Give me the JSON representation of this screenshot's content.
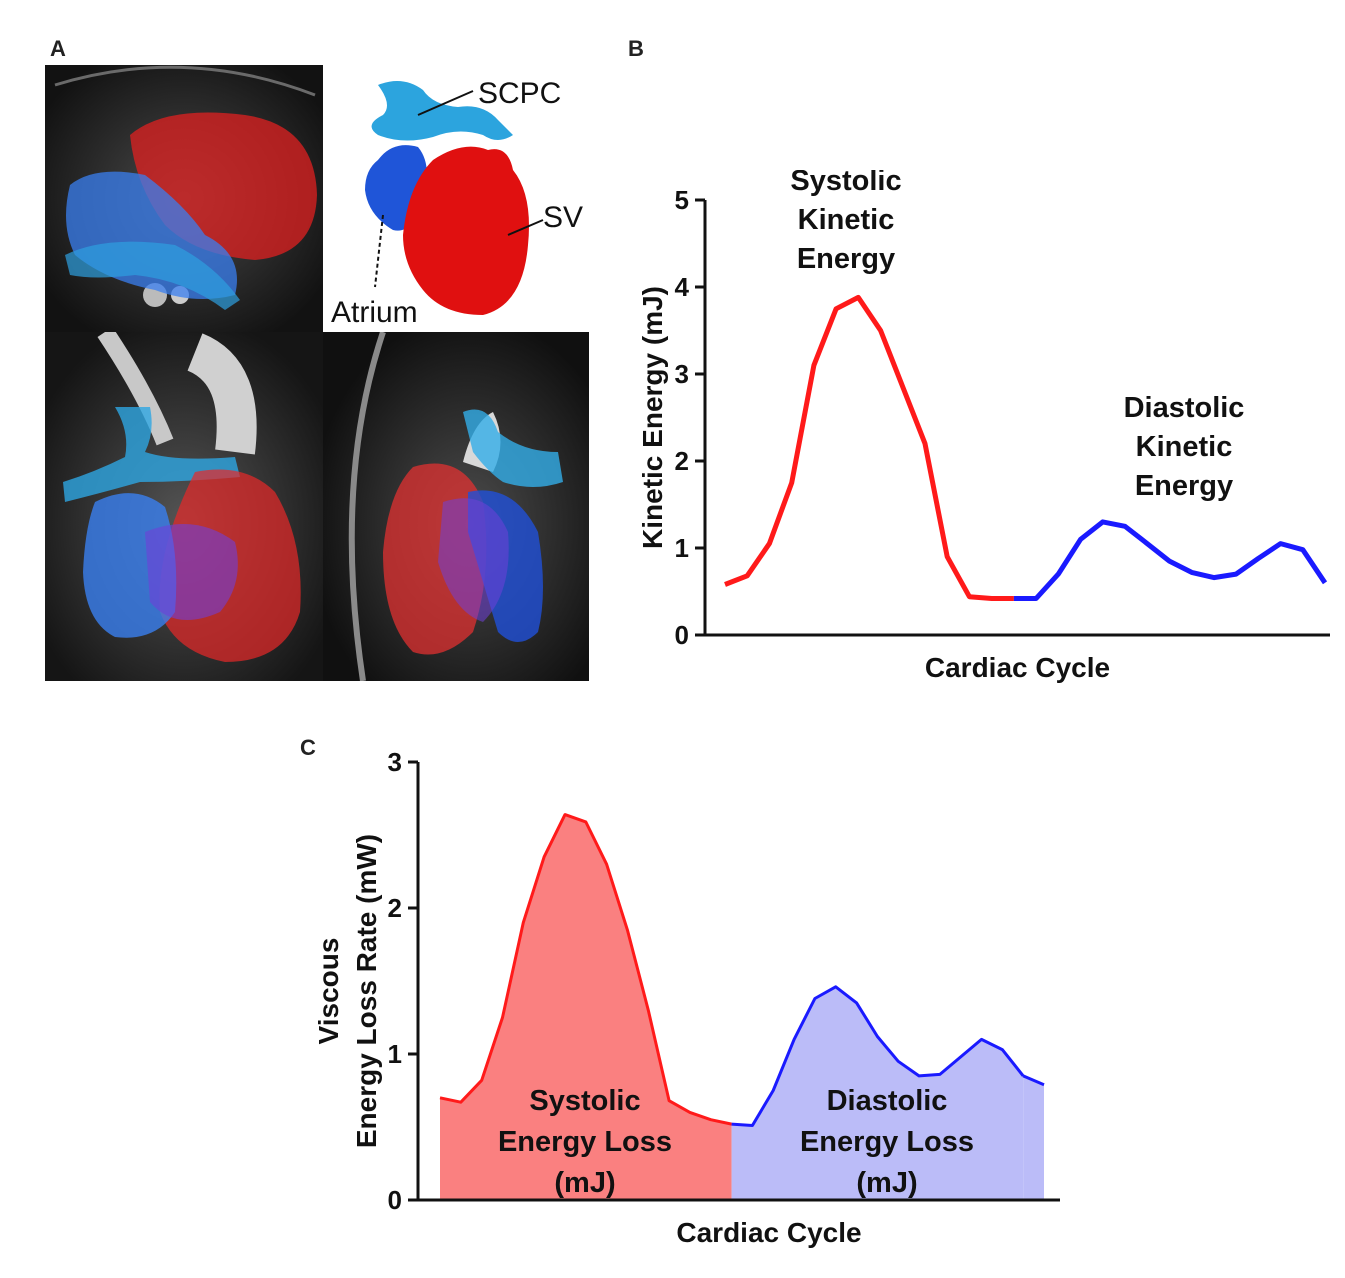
{
  "panels": {
    "a": "A",
    "b": "B",
    "c": "C"
  },
  "anatomy": {
    "labels": {
      "scpc": "SCPC",
      "sv": "SV",
      "atrium": "Atrium"
    },
    "colors": {
      "sv": "#e01010",
      "atrium": "#1f55d8",
      "scpc": "#2d9fdd"
    }
  },
  "chart_data": [
    {
      "type": "line",
      "panel": "B",
      "title": "",
      "xlabel": "Cardiac Cycle",
      "ylabel": "Kinetic Energy (mJ)",
      "ylim": [
        0,
        5
      ],
      "yticks": [
        "0",
        "1",
        "2",
        "3",
        "4",
        "5"
      ],
      "x": [
        0,
        1,
        2,
        3,
        4,
        5,
        6,
        7,
        8,
        9,
        10,
        11,
        12,
        13,
        14,
        15,
        16,
        17,
        18,
        19,
        20,
        21,
        22,
        23,
        24,
        25,
        26,
        27
      ],
      "series": [
        {
          "name": "Systolic",
          "color": "#ff1a1a",
          "x": [
            0,
            1,
            2,
            3,
            4,
            5,
            6,
            7,
            8,
            9,
            10,
            11,
            12,
            13
          ],
          "values": [
            0.58,
            0.68,
            1.05,
            1.75,
            3.1,
            3.75,
            3.88,
            3.5,
            2.85,
            2.2,
            0.9,
            0.44,
            0.42,
            0.42
          ]
        },
        {
          "name": "Diastolic",
          "color": "#1a1aff",
          "x": [
            13,
            14,
            15,
            16,
            17,
            18,
            19,
            20,
            21,
            22,
            23,
            24,
            25,
            26,
            27
          ],
          "values": [
            0.42,
            0.42,
            0.7,
            1.1,
            1.3,
            1.25,
            1.05,
            0.85,
            0.72,
            0.66,
            0.7,
            0.88,
            1.05,
            0.98,
            0.6
          ]
        }
      ],
      "annotations": {
        "systolic": [
          "Systolic",
          "Kinetic",
          "Energy"
        ],
        "diastolic": [
          "Diastolic",
          "Kinetic",
          "Energy"
        ]
      }
    },
    {
      "type": "area",
      "panel": "C",
      "title": "",
      "xlabel": "Cardiac Cycle",
      "ylabel": [
        "Viscous",
        "Energy Loss Rate (mW)"
      ],
      "ylim": [
        0,
        3
      ],
      "yticks": [
        "0",
        "1",
        "2",
        "3"
      ],
      "series": [
        {
          "name": "Systolic",
          "line_color": "#ff1a1a",
          "fill_color": "#fa8080",
          "x": [
            0,
            1,
            2,
            3,
            4,
            5,
            6,
            7,
            8,
            9,
            10,
            11,
            12,
            13,
            14
          ],
          "values": [
            0.7,
            0.67,
            0.82,
            1.25,
            1.9,
            2.35,
            2.64,
            2.59,
            2.3,
            1.85,
            1.3,
            0.68,
            0.6,
            0.55,
            0.52
          ]
        },
        {
          "name": "Diastolic",
          "line_color": "#1a1aff",
          "fill_color": "#bbbcf8",
          "x": [
            14,
            15,
            16,
            17,
            18,
            19,
            20,
            21,
            22,
            23,
            24,
            25,
            26,
            27,
            28
          ],
          "values": [
            0.52,
            0.51,
            0.75,
            1.1,
            1.38,
            1.46,
            1.35,
            1.12,
            0.95,
            0.85,
            0.86,
            0.98,
            1.1,
            1.03,
            0.85
          ]
        },
        {
          "name": "Diastolic-tail",
          "line_color": "#1a1aff",
          "fill_color": "#bbbcf8",
          "x": [
            28,
            29
          ],
          "values": [
            0.85,
            0.79
          ]
        }
      ],
      "annotations": {
        "systolic": [
          "Systolic",
          "Energy Loss",
          "(mJ)"
        ],
        "diastolic": [
          "Diastolic",
          "Energy Loss",
          "(mJ)"
        ]
      }
    }
  ]
}
